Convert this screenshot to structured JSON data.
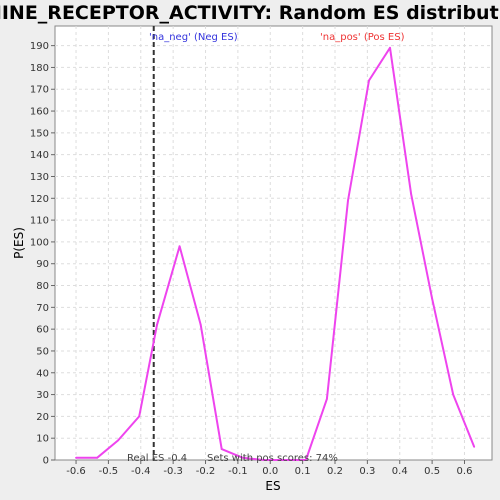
{
  "chart_data": {
    "type": "line",
    "title": "AMINE_RECEPTOR_ACTIVITY: Random ES distribution",
    "xlabel": "ES",
    "ylabel": "P(ES)",
    "xlim": [
      -0.665,
      0.685
    ],
    "ylim": [
      0,
      199
    ],
    "xticks": [
      -0.6,
      -0.5,
      -0.4,
      -0.3,
      -0.2,
      -0.1,
      0.0,
      0.1,
      0.2,
      0.3,
      0.4,
      0.5,
      0.6
    ],
    "xtick_labels": [
      "-0.6",
      "-0.5",
      "-0.4",
      "-0.3",
      "-0.2",
      "-0.1",
      "0.0",
      "0.1",
      "0.2",
      "0.3",
      "0.4",
      "0.5",
      "0.6"
    ],
    "yticks": [
      0,
      10,
      20,
      30,
      40,
      50,
      60,
      70,
      80,
      90,
      100,
      110,
      120,
      130,
      140,
      150,
      160,
      170,
      180,
      190
    ],
    "grid": true,
    "series": [
      {
        "color": "#ee44ee",
        "x": [
          -0.6,
          -0.535,
          -0.47,
          -0.405,
          -0.35,
          -0.28,
          -0.215,
          -0.15,
          -0.085,
          -0.02,
          0.045,
          0.11,
          0.175,
          0.24,
          0.305,
          0.37,
          0.435,
          0.5,
          0.565,
          0.63
        ],
        "y": [
          1,
          1,
          9,
          20,
          62,
          98,
          62,
          5,
          1,
          0,
          0,
          0,
          28,
          119,
          174,
          189,
          122,
          74,
          30,
          6
        ]
      }
    ],
    "annotations": {
      "real_es_line": {
        "x": -0.36,
        "color": "#333333"
      },
      "neg_label": {
        "text": "'na_neg' (Neg ES)",
        "color": "#3333dd"
      },
      "pos_label": {
        "text": "'na_pos' (Pos ES)",
        "color": "#ee3333"
      },
      "real_es_text": "Real ES -0.4",
      "sets_text": "Sets with pos scores: 74%"
    }
  }
}
